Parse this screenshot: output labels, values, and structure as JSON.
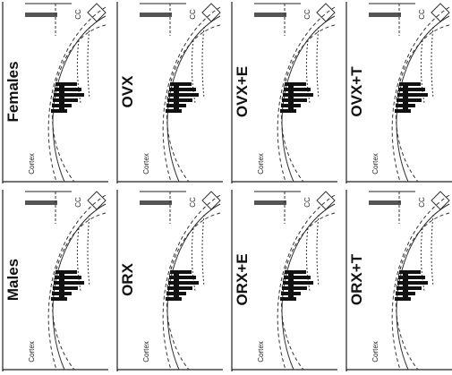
{
  "panels": [
    {
      "label": "Females",
      "annotations": [
        "Cortex",
        "CC"
      ]
    },
    {
      "label": "OVX",
      "annotations": [
        "Cortex",
        "CC"
      ]
    },
    {
      "label": "OVX+E",
      "annotations": [
        "Cortex",
        "CC"
      ]
    },
    {
      "label": "OVX+T",
      "annotations": [
        "Cortex",
        "CC"
      ]
    },
    {
      "label": "Males",
      "annotations": [
        "Cortex",
        "CC"
      ]
    },
    {
      "label": "ORX",
      "annotations": [
        "Cortex",
        "CC"
      ]
    },
    {
      "label": "ORX+E",
      "annotations": [
        "Cortex",
        "CC"
      ]
    },
    {
      "label": "ORX+T",
      "annotations": [
        "Cortex",
        "CC"
      ]
    }
  ]
}
